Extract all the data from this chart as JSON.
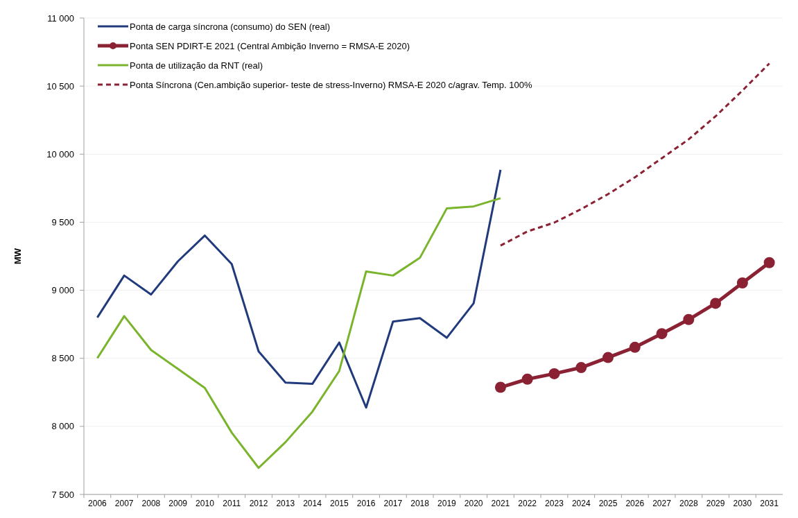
{
  "chart_data": {
    "type": "line",
    "ylabel": "MW",
    "categories": [
      "2006",
      "2007",
      "2008",
      "2009",
      "2010",
      "2011",
      "2012",
      "2013",
      "2014",
      "2015",
      "2016",
      "2017",
      "2018",
      "2019",
      "2020",
      "2021",
      "2022",
      "2023",
      "2024",
      "2025",
      "2026",
      "2027",
      "2028",
      "2029",
      "2030",
      "2031"
    ],
    "ylim": [
      7500,
      11000
    ],
    "yticks": [
      {
        "value": 7500,
        "label": "7 500"
      },
      {
        "value": 8000,
        "label": "8 000"
      },
      {
        "value": 8500,
        "label": "8 500"
      },
      {
        "value": 9000,
        "label": "9 000"
      },
      {
        "value": 9500,
        "label": "9 500"
      },
      {
        "value": 10000,
        "label": "10 000"
      },
      {
        "value": 10500,
        "label": "10 500"
      },
      {
        "value": 11000,
        "label": "11 000"
      }
    ],
    "grid": "y",
    "legend": "top left",
    "series": [
      {
        "name": "Ponta de carga síncrona (consumo) do SEN (real)",
        "color": "#203a7c",
        "marker": "none",
        "line_style": "solid",
        "values": [
          8800,
          9108,
          8969,
          9213,
          9402,
          9193,
          8551,
          8322,
          8312,
          8616,
          8138,
          8770,
          8795,
          8651,
          8904,
          9885,
          null,
          null,
          null,
          null,
          null,
          null,
          null,
          null,
          null,
          null
        ]
      },
      {
        "name": "Ponta SEN PDIRT-E 2021 (Central Ambição Inverno = RMSA-E 2020)",
        "color": "#8b2234",
        "marker": "circle",
        "line_style": "solid",
        "values": [
          null,
          null,
          null,
          null,
          null,
          null,
          null,
          null,
          null,
          null,
          null,
          null,
          null,
          null,
          null,
          8287,
          8347,
          8387,
          8432,
          8506,
          8581,
          8681,
          8785,
          8904,
          9054,
          9203
        ]
      },
      {
        "name": "Ponta de utilização da RNT (real)",
        "color": "#7ab42c",
        "marker": "none",
        "line_style": "solid",
        "values": [
          8501,
          8810,
          8561,
          8422,
          8282,
          7954,
          7695,
          7884,
          8108,
          8407,
          9138,
          9108,
          9238,
          9601,
          9616,
          9676,
          null,
          null,
          null,
          null,
          null,
          null,
          null,
          null,
          null,
          null
        ]
      },
      {
        "name": "Ponta Síncrona (Cen.ambição superior- teste de stress-Inverno) RMSA-E 2020 c/agrav. Temp. 100%",
        "color": "#8b2234",
        "marker": "none",
        "line_style": "dashed",
        "values": [
          null,
          null,
          null,
          null,
          null,
          null,
          null,
          null,
          null,
          null,
          null,
          null,
          null,
          null,
          null,
          9328,
          9432,
          9497,
          9596,
          9706,
          9830,
          9970,
          10109,
          10278,
          10467,
          10666
        ]
      }
    ]
  }
}
